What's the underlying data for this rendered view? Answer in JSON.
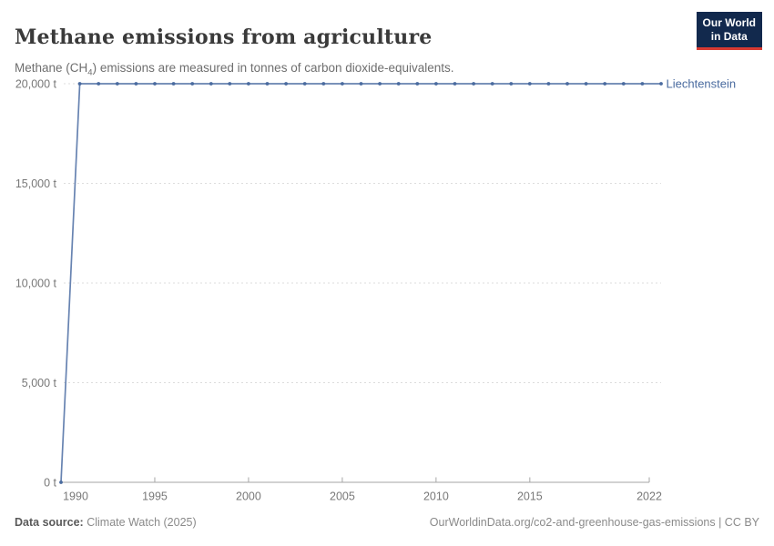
{
  "header": {
    "title": "Methane emissions from agriculture",
    "subtitle": {
      "pre": "Methane (CH",
      "sub": "4",
      "post": ") emissions are measured in tonnes of carbon dioxide-equivalents."
    }
  },
  "logo": {
    "line1": "Our World",
    "line2": "in Data",
    "bg_color": "#12294d",
    "stripe_color": "#d93a32"
  },
  "footer": {
    "source_label": "Data source:",
    "source_value": "Climate Watch (2025)",
    "credit": "OurWorldinData.org/co2-and-greenhouse-gas-emissions | CC BY"
  },
  "chart_data": {
    "type": "line",
    "title": "Methane emissions from agriculture",
    "unit": "t",
    "xlim": [
      1990,
      2022
    ],
    "ylim": [
      0,
      20000
    ],
    "grid": "dashed-horizontal",
    "legend_position": "right-of-line-end",
    "x_ticks": [
      1990,
      1995,
      2000,
      2005,
      2010,
      2015,
      2022
    ],
    "y_ticks": [
      0,
      5000,
      10000,
      15000,
      20000
    ],
    "y_tick_labels": [
      "0 t",
      "5,000 t",
      "10,000 t",
      "15,000 t",
      "20,000 t"
    ],
    "grid_color": "#dddddd",
    "axis_color": "#a6a6a6",
    "tick_label_color": "#787878",
    "series": [
      {
        "name": "Liechtenstein",
        "color": "#4a6b9f",
        "line_color": "#6783b1",
        "points": [
          [
            1990,
            0
          ],
          [
            1991,
            20000
          ],
          [
            1992,
            20000
          ],
          [
            1993,
            20000
          ],
          [
            1994,
            20000
          ],
          [
            1995,
            20000
          ],
          [
            1996,
            20000
          ],
          [
            1997,
            20000
          ],
          [
            1998,
            20000
          ],
          [
            1999,
            20000
          ],
          [
            2000,
            20000
          ],
          [
            2001,
            20000
          ],
          [
            2002,
            20000
          ],
          [
            2003,
            20000
          ],
          [
            2004,
            20000
          ],
          [
            2005,
            20000
          ],
          [
            2006,
            20000
          ],
          [
            2007,
            20000
          ],
          [
            2008,
            20000
          ],
          [
            2009,
            20000
          ],
          [
            2010,
            20000
          ],
          [
            2011,
            20000
          ],
          [
            2012,
            20000
          ],
          [
            2013,
            20000
          ],
          [
            2014,
            20000
          ],
          [
            2015,
            20000
          ],
          [
            2016,
            20000
          ],
          [
            2017,
            20000
          ],
          [
            2018,
            20000
          ],
          [
            2019,
            20000
          ],
          [
            2020,
            20000
          ],
          [
            2021,
            20000
          ],
          [
            2022,
            20000
          ]
        ]
      }
    ]
  }
}
